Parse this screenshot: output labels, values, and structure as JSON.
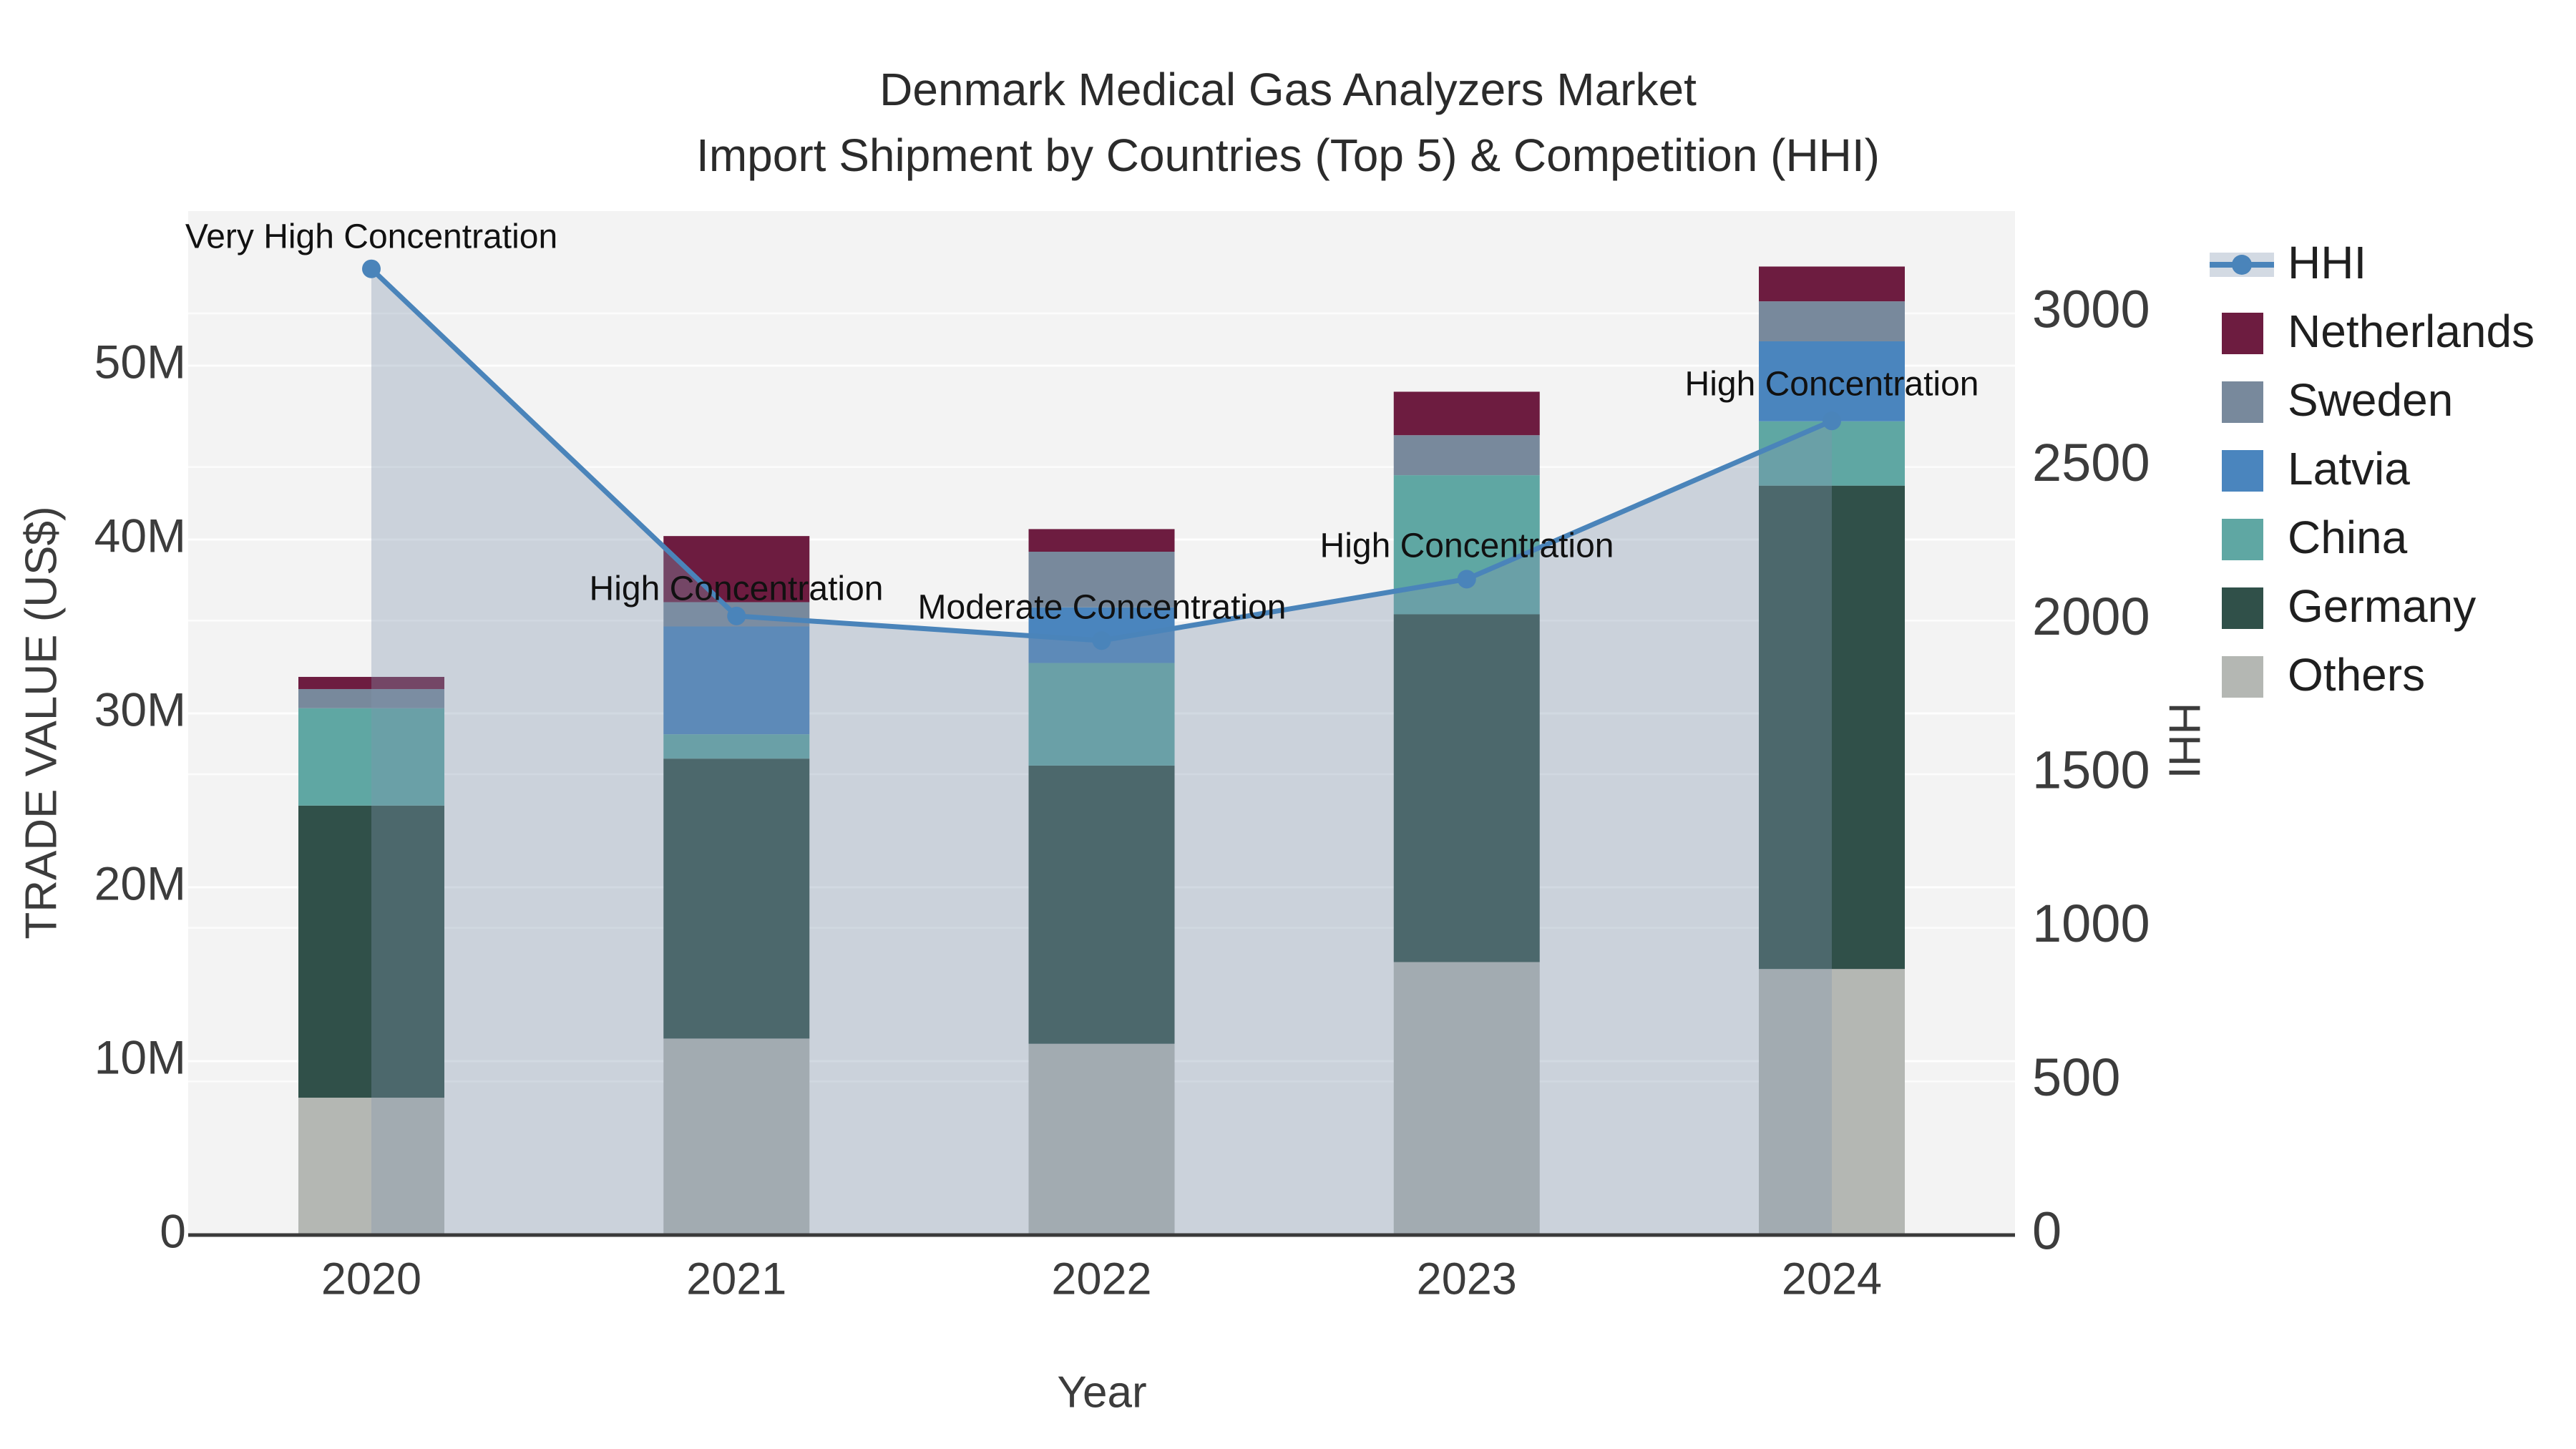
{
  "title": {
    "line1": "Denmark Medical Gas Analyzers Market",
    "line2": "Import Shipment by Countries (Top 5) & Competition (HHI)"
  },
  "axes": {
    "y_left": {
      "title": "TRADE VALUE (US$)",
      "tick_labels": [
        "0",
        "10M",
        "20M",
        "30M",
        "40M",
        "50M"
      ],
      "tick_values_millions": [
        0,
        10,
        20,
        30,
        40,
        50
      ]
    },
    "y_right": {
      "title": "HHI",
      "tick_labels": [
        "0",
        "500",
        "1000",
        "1500",
        "2000",
        "2500",
        "3000"
      ],
      "tick_values": [
        0,
        500,
        1000,
        1500,
        2000,
        2500,
        3000
      ]
    },
    "x": {
      "title": "Year",
      "categories": [
        "2020",
        "2021",
        "2022",
        "2023",
        "2024"
      ]
    }
  },
  "chart_data": {
    "type": "bar",
    "subtype": "stacked-bars-with-line-area-overlay",
    "categories": [
      "2020",
      "2021",
      "2022",
      "2023",
      "2024"
    ],
    "stack_order_bottom_to_top": [
      "Others",
      "Germany",
      "China",
      "Latvia",
      "Sweden",
      "Netherlands"
    ],
    "series": [
      {
        "name": "Others",
        "color": "#b4b7b3",
        "values_millions_usd": [
          7.9,
          11.3,
          11.0,
          15.7,
          15.3
        ]
      },
      {
        "name": "Germany",
        "color": "#305049",
        "values_millions_usd": [
          16.8,
          16.1,
          16.0,
          20.0,
          27.8
        ]
      },
      {
        "name": "China",
        "color": "#5fa7a3",
        "values_millions_usd": [
          5.6,
          1.4,
          5.9,
          8.0,
          3.7
        ]
      },
      {
        "name": "Latvia",
        "color": "#4a85be",
        "values_millions_usd": [
          0.0,
          6.2,
          3.2,
          0.0,
          4.6
        ]
      },
      {
        "name": "Sweden",
        "color": "#78899c",
        "values_millions_usd": [
          1.1,
          1.4,
          3.2,
          2.3,
          2.3
        ]
      },
      {
        "name": "Netherlands",
        "color": "#6d1c40",
        "values_millions_usd": [
          0.7,
          3.8,
          1.3,
          2.5,
          2.0
        ]
      }
    ],
    "bar_totals_millions_usd": [
      32.1,
      40.2,
      40.6,
      48.5,
      55.7
    ],
    "hhi": {
      "name": "HHI",
      "line_color": "#4a84ba",
      "area_color": "rgba(128,148,175,0.35)",
      "values": [
        3145,
        2015,
        1935,
        2135,
        2650
      ]
    },
    "ylabel_left": "TRADE VALUE (US$)",
    "ylabel_right": "HHI",
    "xlabel": "Year",
    "ylim_left_millions": [
      0,
      58.9
    ],
    "ylim_right": [
      0,
      3335
    ],
    "grid": true,
    "legend_position": "right"
  },
  "annotations": [
    {
      "year": "2020",
      "text": "Very High Concentration"
    },
    {
      "year": "2021",
      "text": "High Concentration"
    },
    {
      "year": "2022",
      "text": "Moderate Concentration"
    },
    {
      "year": "2023",
      "text": "High Concentration"
    },
    {
      "year": "2024",
      "text": "High Concentration"
    }
  ],
  "legend": {
    "items": [
      {
        "label": "HHI"
      },
      {
        "label": "Netherlands"
      },
      {
        "label": "Sweden"
      },
      {
        "label": "Latvia"
      },
      {
        "label": "China"
      },
      {
        "label": "Germany"
      },
      {
        "label": "Others"
      }
    ]
  },
  "colors": {
    "plot_background": "#f3f3f3",
    "gridline": "#ffffff",
    "axis_line": "#3a3a3a",
    "hhi_line": "#4a84ba"
  }
}
